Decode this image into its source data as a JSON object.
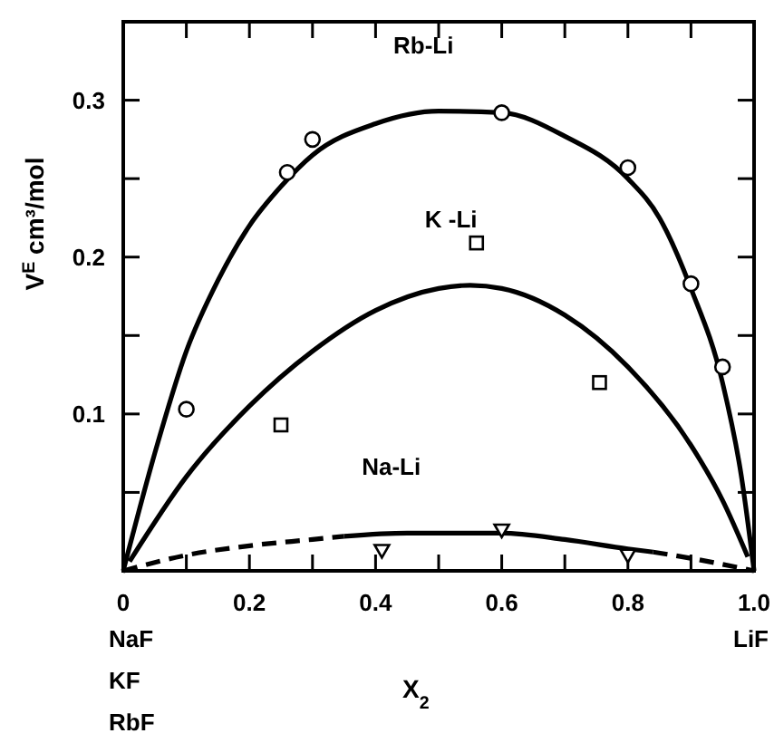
{
  "chart_data": {
    "type": "line",
    "xlabel": "X$_{2}$",
    "ylabel": "V$^{E}$ cm³/mol",
    "xlim": [
      0,
      1
    ],
    "ylim": [
      0,
      0.35
    ],
    "xticks": [
      0,
      {
        "value": 0.1,
        "label": null
      },
      0.2,
      {
        "value": 0.3,
        "label": null
      },
      0.4,
      {
        "value": 0.5,
        "label": null
      },
      0.6,
      {
        "value": 0.7,
        "label": null
      },
      0.8,
      {
        "value": 0.9,
        "label": null
      },
      {
        "value": 1,
        "label": "1.0"
      }
    ],
    "yticks": [
      {
        "value": 0.05,
        "label": null
      },
      0.1,
      {
        "value": 0.15,
        "label": null
      },
      0.2,
      {
        "value": 0.25,
        "label": null
      },
      0.3
    ],
    "grid": false,
    "series": [
      {
        "name": "Rb-Li",
        "type": "line",
        "color": "#000000",
        "line_style": "solid",
        "x": [
          0,
          0.05,
          0.1,
          0.15,
          0.2,
          0.25,
          0.3,
          0.4,
          0.5,
          0.6,
          0.7,
          0.8,
          0.85,
          0.9,
          0.95,
          0.98,
          1
        ],
        "values": [
          0,
          0.075,
          0.14,
          0.185,
          0.22,
          0.245,
          0.265,
          0.285,
          0.293,
          0.292,
          0.277,
          0.25,
          0.225,
          0.18,
          0.12,
          0.06,
          0
        ]
      },
      {
        "name": "K -Li",
        "type": "line",
        "color": "#000000",
        "line_style": "solid",
        "x": [
          0.01,
          0.1,
          0.2,
          0.3,
          0.4,
          0.5,
          0.55,
          0.6,
          0.7,
          0.8,
          0.9,
          0.95,
          0.99
        ],
        "values": [
          0.006,
          0.06,
          0.105,
          0.14,
          0.166,
          0.18,
          0.182,
          0.18,
          0.163,
          0.13,
          0.08,
          0.045,
          0.009
        ]
      },
      {
        "type": "line",
        "color": "#000000",
        "line_style": "dashed",
        "x": [
          0,
          0.1,
          0.2,
          0.3,
          0.35
        ],
        "values": [
          0,
          0.01,
          0.016,
          0.02,
          0.022
        ]
      },
      {
        "name": "Na-Li",
        "type": "line",
        "color": "#000000",
        "line_style": "solid",
        "x": [
          0.35,
          0.45,
          0.6,
          0.7,
          0.8,
          0.84
        ],
        "values": [
          0.022,
          0.024,
          0.024,
          0.02,
          0.014,
          0.012
        ]
      },
      {
        "type": "line",
        "color": "#000000",
        "line_style": "dashed",
        "x": [
          0.84,
          0.9,
          1
        ],
        "values": [
          0.012,
          0.008,
          0
        ]
      },
      {
        "type": "scatter",
        "marker": "circle",
        "color": "#000000",
        "x": [
          0.1,
          0.26,
          0.3,
          0.6,
          0.8,
          0.9,
          0.95
        ],
        "values": [
          0.103,
          0.254,
          0.275,
          0.292,
          0.257,
          0.183,
          0.13
        ]
      },
      {
        "type": "scatter",
        "marker": "square",
        "color": "#000000",
        "x": [
          0.25,
          0.56,
          0.755
        ],
        "values": [
          0.093,
          0.209,
          0.12
        ]
      },
      {
        "type": "scatter",
        "marker": "triangle",
        "color": "#000000",
        "x": [
          0.41,
          0.6,
          0.8
        ],
        "values": [
          0.013,
          0.026,
          0.01
        ]
      }
    ],
    "annotations": [
      "NaF",
      "KF",
      "RbF",
      "LiF"
    ]
  }
}
